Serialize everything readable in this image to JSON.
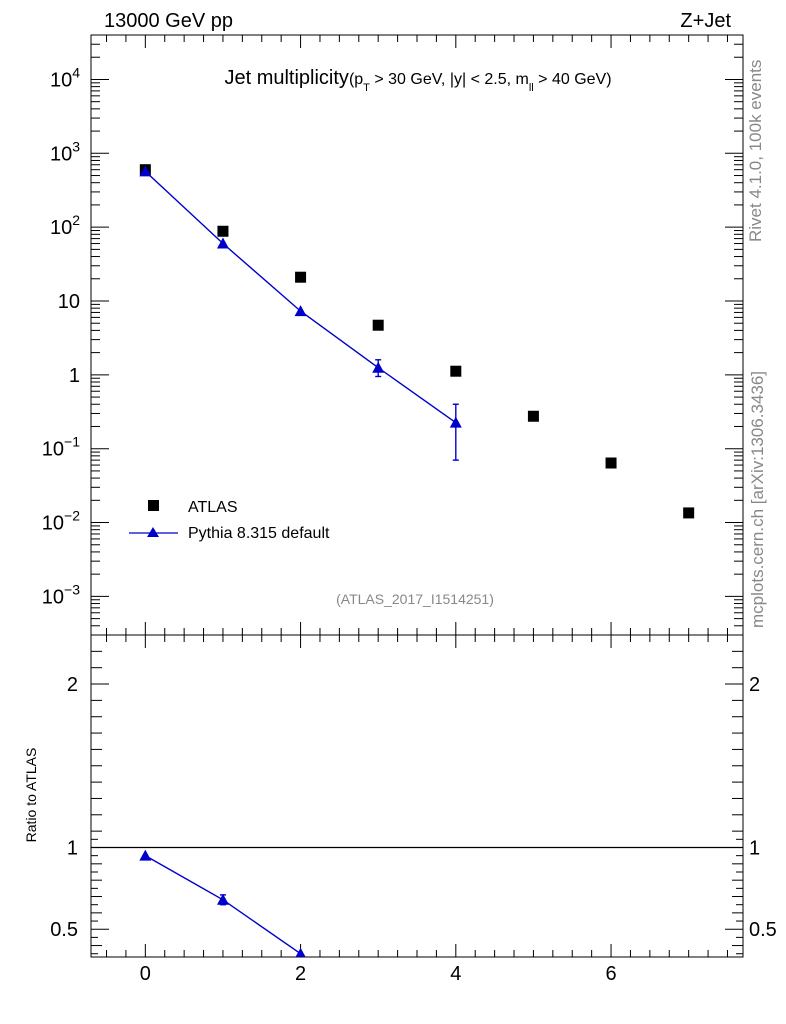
{
  "header": {
    "left": "13000 GeV pp",
    "right": "Z+Jet"
  },
  "side": {
    "rivet": "Rivet 4.1.0,  100k events",
    "source": "mcplots.cern.ch [arXiv:1306.3436]"
  },
  "title": {
    "main": "Jet multiplicity",
    "cuts": {
      "open": "(p",
      "pt_sub": "T",
      "mid": " > 30 GeV, |y| < 2.5, m",
      "m_sub": "ll",
      "close": " > 40 GeV)"
    }
  },
  "analysis_id": "(ATLAS_2017_I1514251)",
  "legend": {
    "atlas": "ATLAS",
    "pythia": "Pythia 8.315 default"
  },
  "ratio_ylabel": "Ratio to ATLAS",
  "colors": {
    "data": "#000000",
    "mc": "#0000cc",
    "grey_text": "#888888"
  },
  "chart_data": [
    {
      "type": "scatter",
      "title": "Jet multiplicity",
      "xlabel": "",
      "ylabel": "",
      "yscale": "log",
      "xlim": [
        -0.7,
        7.7
      ],
      "ylim": [
        0.0003,
        40000
      ],
      "y_ticks": [
        {
          "value": 0.001,
          "base": "10",
          "exp": "−3"
        },
        {
          "value": 0.01,
          "base": "10",
          "exp": "−2"
        },
        {
          "value": 0.1,
          "base": "10",
          "exp": "−1"
        },
        {
          "value": 1,
          "base": "1",
          "exp": ""
        },
        {
          "value": 10,
          "base": "10",
          "exp": ""
        },
        {
          "value": 100,
          "base": "10",
          "exp": "2"
        },
        {
          "value": 1000,
          "base": "10",
          "exp": "3"
        },
        {
          "value": 10000,
          "base": "10",
          "exp": "4"
        }
      ],
      "series": [
        {
          "name": "ATLAS",
          "marker": "square",
          "x": [
            0,
            1,
            2,
            3,
            4,
            5,
            6,
            7
          ],
          "y": [
            600,
            88,
            21,
            4.7,
            1.12,
            0.275,
            0.064,
            0.0135
          ]
        },
        {
          "name": "Pythia 8.315 default",
          "marker": "triangle",
          "line": true,
          "x": [
            0,
            1,
            2,
            3,
            4
          ],
          "y": [
            570,
            60,
            7.3,
            1.25,
            0.225
          ],
          "yerr_low": [
            0,
            0,
            0,
            0.3,
            0.155
          ],
          "yerr_high": [
            0,
            0,
            0,
            0.35,
            0.175
          ]
        }
      ]
    },
    {
      "type": "line",
      "title": "",
      "xlabel": "",
      "ylabel": "Ratio to ATLAS",
      "xlim": [
        -0.7,
        7.7
      ],
      "ylim": [
        0.33,
        2.3
      ],
      "x_ticks": [
        0,
        2,
        4,
        6
      ],
      "y_ticks": [
        {
          "value": 0.5,
          "label": "0.5"
        },
        {
          "value": 1,
          "label": "1"
        },
        {
          "value": 2,
          "label": "2"
        }
      ],
      "reference_line": 1,
      "series": [
        {
          "name": "Pythia 8.315 default",
          "marker": "triangle",
          "x": [
            0,
            1,
            2
          ],
          "y": [
            0.95,
            0.68,
            0.35
          ],
          "yerr": [
            0,
            0.03,
            0
          ]
        }
      ]
    }
  ]
}
